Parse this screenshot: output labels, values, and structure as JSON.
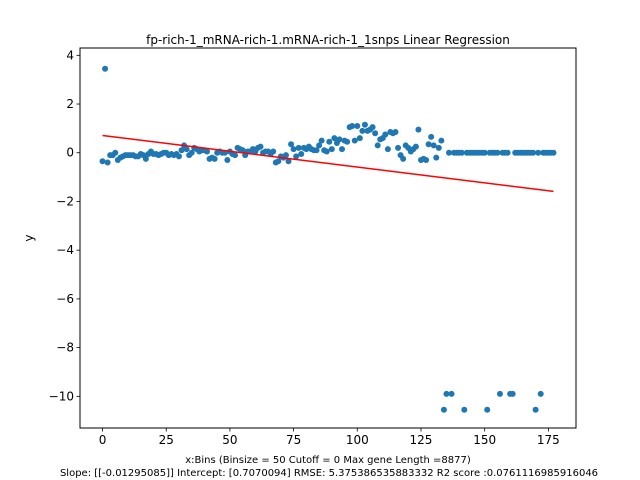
{
  "chart_data": {
    "type": "scatter",
    "title": "fp-rich-1_mRNA-rich-1.mRNA-rich-1_1snps Linear Regression",
    "xlabel": "x:Bins  (Binsize = 50 Cutoff = 0 Max gene Length =8877)",
    "footer": "Slope: [[-0.01295085]] Intercept: [0.7070094] RMSE: 5.375386535883332 R2 score :0.0761116985916046",
    "ylabel": "y",
    "xlim": [
      -8.85,
      185.85
    ],
    "ylim": [
      -11.3,
      4.3
    ],
    "xticks": [
      0,
      25,
      50,
      75,
      100,
      125,
      150,
      175
    ],
    "yticks": [
      4,
      2,
      0,
      -2,
      -4,
      -6,
      -8,
      -10
    ],
    "point_color": "#1f77b4",
    "line_color": "#ff0000",
    "regression": {
      "slope": -0.01295085,
      "intercept": 0.7070094,
      "x_start": 0,
      "x_end": 177
    },
    "points": [
      [
        0,
        -0.35
      ],
      [
        1,
        3.45
      ],
      [
        2,
        -0.4
      ],
      [
        3,
        -0.1
      ],
      [
        4,
        -0.1
      ],
      [
        5,
        0.0
      ],
      [
        6,
        -0.3
      ],
      [
        7,
        -0.2
      ],
      [
        8,
        -0.15
      ],
      [
        9,
        -0.1
      ],
      [
        10,
        -0.1
      ],
      [
        11,
        -0.1
      ],
      [
        12,
        -0.1
      ],
      [
        13,
        -0.15
      ],
      [
        14,
        -0.15
      ],
      [
        15,
        -0.05
      ],
      [
        16,
        -0.1
      ],
      [
        17,
        -0.25
      ],
      [
        18,
        -0.05
      ],
      [
        19,
        0.05
      ],
      [
        20,
        -0.05
      ],
      [
        21,
        -0.05
      ],
      [
        22,
        -0.1
      ],
      [
        23,
        -0.05
      ],
      [
        24,
        0.0
      ],
      [
        25,
        0.0
      ],
      [
        26,
        -0.1
      ],
      [
        27,
        -0.05
      ],
      [
        28,
        -0.1
      ],
      [
        29,
        -0.05
      ],
      [
        30,
        -0.15
      ],
      [
        31,
        0.1
      ],
      [
        32,
        0.3
      ],
      [
        33,
        0.15
      ],
      [
        34,
        -0.1
      ],
      [
        35,
        0.0
      ],
      [
        36,
        0.2
      ],
      [
        37,
        0.15
      ],
      [
        38,
        0.05
      ],
      [
        39,
        0.1
      ],
      [
        40,
        0.1
      ],
      [
        41,
        0.05
      ],
      [
        42,
        -0.25
      ],
      [
        43,
        -0.2
      ],
      [
        44,
        -0.25
      ],
      [
        45,
        0.0
      ],
      [
        46,
        0.05
      ],
      [
        47,
        0.0
      ],
      [
        48,
        0.0
      ],
      [
        49,
        -0.3
      ],
      [
        50,
        0.05
      ],
      [
        51,
        -0.05
      ],
      [
        52,
        -0.1
      ],
      [
        53,
        0.2
      ],
      [
        54,
        0.15
      ],
      [
        55,
        0.1
      ],
      [
        56,
        -0.1
      ],
      [
        57,
        0.05
      ],
      [
        58,
        0.05
      ],
      [
        59,
        0.15
      ],
      [
        60,
        0.05
      ],
      [
        61,
        0.2
      ],
      [
        62,
        0.25
      ],
      [
        63,
        0.0
      ],
      [
        64,
        0.05
      ],
      [
        65,
        0.05
      ],
      [
        66,
        -0.05
      ],
      [
        67,
        0.05
      ],
      [
        68,
        -0.4
      ],
      [
        69,
        -0.35
      ],
      [
        70,
        -0.15
      ],
      [
        71,
        -0.2
      ],
      [
        72,
        -0.1
      ],
      [
        73,
        -0.35
      ],
      [
        74,
        0.35
      ],
      [
        75,
        0.15
      ],
      [
        76,
        -0.15
      ],
      [
        77,
        0.2
      ],
      [
        78,
        -0.05
      ],
      [
        79,
        0.2
      ],
      [
        80,
        0.15
      ],
      [
        81,
        0.25
      ],
      [
        82,
        0.15
      ],
      [
        83,
        0.1
      ],
      [
        84,
        0.1
      ],
      [
        85,
        0.3
      ],
      [
        86,
        0.5
      ],
      [
        87,
        0.1
      ],
      [
        88,
        0.05
      ],
      [
        89,
        0.45
      ],
      [
        90,
        0.15
      ],
      [
        91,
        0.6
      ],
      [
        92,
        0.4
      ],
      [
        93,
        0.55
      ],
      [
        94,
        0.15
      ],
      [
        95,
        0.5
      ],
      [
        96,
        0.45
      ],
      [
        97,
        1.05
      ],
      [
        98,
        1.1
      ],
      [
        99,
        0.5
      ],
      [
        100,
        1.1
      ],
      [
        101,
        0.6
      ],
      [
        102,
        0.9
      ],
      [
        103,
        1.15
      ],
      [
        104,
        0.9
      ],
      [
        105,
        0.95
      ],
      [
        106,
        1.05
      ],
      [
        107,
        0.8
      ],
      [
        108,
        0.3
      ],
      [
        109,
        0.55
      ],
      [
        110,
        0.6
      ],
      [
        111,
        0.75
      ],
      [
        112,
        0.15
      ],
      [
        113,
        0.85
      ],
      [
        114,
        0.8
      ],
      [
        115,
        0.85
      ],
      [
        116,
        0.2
      ],
      [
        117,
        -0.1
      ],
      [
        118,
        -0.25
      ],
      [
        119,
        0.3
      ],
      [
        120,
        0.2
      ],
      [
        121,
        0.05
      ],
      [
        122,
        0.15
      ],
      [
        123,
        0.25
      ],
      [
        124,
        0.95
      ],
      [
        125,
        -0.3
      ],
      [
        126,
        -0.25
      ],
      [
        127,
        -0.3
      ],
      [
        128,
        0.35
      ],
      [
        129,
        0.65
      ],
      [
        130,
        0.3
      ],
      [
        131,
        -0.2
      ],
      [
        132,
        0.2
      ],
      [
        133,
        0.5
      ],
      [
        134,
        -10.55
      ],
      [
        135,
        -9.9
      ],
      [
        136,
        0.0
      ],
      [
        137,
        -9.9
      ],
      [
        138,
        0.0
      ],
      [
        139,
        0.0
      ],
      [
        140,
        0.0
      ],
      [
        141,
        0.0
      ],
      [
        142,
        -10.55
      ],
      [
        143,
        0.0
      ],
      [
        144,
        0.0
      ],
      [
        145,
        0.0
      ],
      [
        146,
        0.0
      ],
      [
        147,
        0.0
      ],
      [
        148,
        0.0
      ],
      [
        149,
        0.0
      ],
      [
        150,
        0.0
      ],
      [
        151,
        -10.55
      ],
      [
        152,
        0.0
      ],
      [
        153,
        0.0
      ],
      [
        154,
        0.0
      ],
      [
        155,
        0.0
      ],
      [
        156,
        -9.9
      ],
      [
        157,
        0.0
      ],
      [
        158,
        0.0
      ],
      [
        159,
        0.0
      ],
      [
        160,
        -9.9
      ],
      [
        161,
        -9.9
      ],
      [
        162,
        0.0
      ],
      [
        163,
        0.0
      ],
      [
        164,
        0.0
      ],
      [
        165,
        0.0
      ],
      [
        166,
        0.0
      ],
      [
        167,
        0.0
      ],
      [
        168,
        0.0
      ],
      [
        169,
        0.0
      ],
      [
        170,
        -10.55
      ],
      [
        171,
        0.0
      ],
      [
        172,
        -9.9
      ],
      [
        173,
        0.0
      ],
      [
        174,
        0.0
      ],
      [
        175,
        0.0
      ],
      [
        176,
        0.0
      ],
      [
        177,
        0.0
      ]
    ]
  }
}
